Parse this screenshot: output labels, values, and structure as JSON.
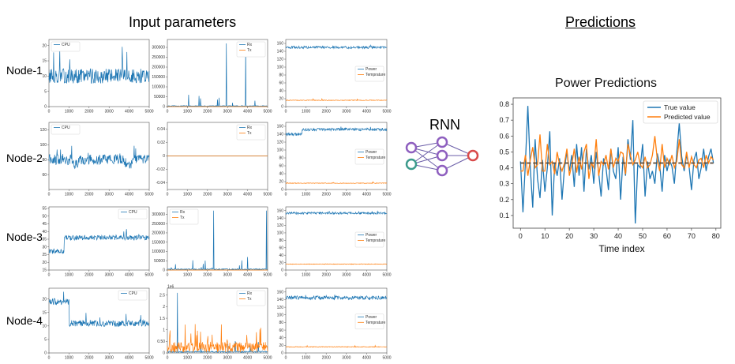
{
  "titles": {
    "input": "Input parameters",
    "predictions": "Predictions",
    "rnn": "RNN"
  },
  "nodes": [
    "Node-1",
    "Node-2",
    "Node-3",
    "Node-4"
  ],
  "colors": {
    "blue": "#1f77b4",
    "orange": "#ff7f0e",
    "dark": "#333333",
    "rnn_input": [
      "#8e5fbf",
      "#3d9a8c"
    ],
    "rnn_hidden": "#8e5fbf",
    "rnn_output": "#d94a4a"
  },
  "chart_data": [
    {
      "id": "n1-cpu",
      "type": "line",
      "series": [
        {
          "name": "CPU",
          "color": "#1f77b4",
          "base": 10,
          "noise": 2.4,
          "spikes": 0.05,
          "spikeMag": 10
        }
      ],
      "xlim": [
        0,
        5000
      ],
      "ylim": [
        0,
        22
      ],
      "yticks": [
        0,
        5,
        10,
        15,
        20
      ],
      "legend": "top-left"
    },
    {
      "id": "n1-net",
      "type": "line",
      "series": [
        {
          "name": "Rx",
          "color": "#1f77b4",
          "base": 3000,
          "noise": 2000,
          "spikes": 0.02,
          "spikeMag": 60000,
          "bigSpikes": [
            [
              2950,
              320000
            ],
            [
              3900,
              310000
            ],
            [
              1050,
              60000
            ]
          ]
        },
        {
          "name": "Tx",
          "color": "#ff7f0e",
          "base": 0,
          "noise": 0,
          "spikes": 0,
          "spikeMag": 0
        }
      ],
      "xlim": [
        0,
        5000
      ],
      "ylim": [
        0,
        340000
      ],
      "yticks": [
        0,
        50000,
        100000,
        150000,
        200000,
        250000,
        300000
      ],
      "legend": "top-right"
    },
    {
      "id": "n1-pow",
      "type": "line",
      "series": [
        {
          "name": "Power",
          "color": "#1f77b4",
          "base": 150,
          "noise": 3,
          "spikes": 0.03,
          "spikeMag": 6
        },
        {
          "name": "Temprature",
          "color": "#ff7f0e",
          "base": 16,
          "noise": 0.8,
          "spikes": 0.01,
          "spikeMag": 4
        }
      ],
      "xlim": [
        0,
        5000
      ],
      "ylim": [
        0,
        170
      ],
      "yticks": [
        0,
        20,
        40,
        60,
        80,
        100,
        120,
        140,
        160
      ],
      "legend": "center-right"
    },
    {
      "id": "n2-cpu",
      "type": "line",
      "series": [
        {
          "name": "CPU",
          "color": "#1f77b4",
          "base": 80,
          "noise": 7,
          "spikes": 0.03,
          "spikeMag": 20,
          "segments": [
            [
              1200,
              1450,
              75
            ],
            [
              3700,
              4200,
              75
            ]
          ]
        }
      ],
      "xlim": [
        0,
        5000
      ],
      "ylim": [
        40,
        130
      ],
      "yticks": [
        60,
        80,
        100,
        120
      ],
      "legend": "top-left"
    },
    {
      "id": "n2-net",
      "type": "line",
      "series": [
        {
          "name": "Rx",
          "color": "#1f77b4",
          "base": 0,
          "noise": 0,
          "spikes": 0,
          "spikeMag": 0
        },
        {
          "name": "Tx",
          "color": "#ff7f0e",
          "base": 0,
          "noise": 0,
          "spikes": 0,
          "spikeMag": 0
        }
      ],
      "xlim": [
        0,
        5000
      ],
      "ylim": [
        -0.05,
        0.05
      ],
      "yticks": [
        -0.04,
        -0.02,
        0.0,
        0.02,
        0.04
      ],
      "legend": "top-right"
    },
    {
      "id": "n2-pow",
      "type": "line",
      "series": [
        {
          "name": "Power",
          "color": "#1f77b4",
          "base": 152,
          "noise": 3.5,
          "spikes": 0.03,
          "spikeMag": 8,
          "segments": [
            [
              0,
              800,
              140
            ]
          ]
        },
        {
          "name": "Temprature",
          "color": "#ff7f0e",
          "base": 16,
          "noise": 0.8,
          "spikes": 0.01,
          "spikeMag": 4
        }
      ],
      "xlim": [
        0,
        5000
      ],
      "ylim": [
        0,
        170
      ],
      "yticks": [
        0,
        20,
        40,
        60,
        80,
        100,
        120,
        140,
        160
      ],
      "legend": "center-right"
    },
    {
      "id": "n3-cpu",
      "type": "line",
      "series": [
        {
          "name": "CPU",
          "color": "#1f77b4",
          "base": 36,
          "noise": 1.6,
          "spikes": 0.03,
          "spikeMag": 6,
          "segments": [
            [
              0,
              750,
              27
            ]
          ]
        }
      ],
      "xlim": [
        0,
        5000
      ],
      "ylim": [
        15,
        56
      ],
      "yticks": [
        15,
        20,
        25,
        30,
        35,
        40,
        45,
        50,
        55
      ],
      "legend": "top-right"
    },
    {
      "id": "n3-net",
      "type": "line",
      "series": [
        {
          "name": "Rx",
          "color": "#1f77b4",
          "base": 4000,
          "noise": 3000,
          "spikes": 0.02,
          "spikeMag": 50000,
          "bigSpikes": [
            [
              2300,
              320000
            ],
            [
              4950,
              320000
            ],
            [
              4000,
              70000
            ]
          ]
        },
        {
          "name": "Tx",
          "color": "#ff7f0e",
          "base": 0,
          "noise": 0,
          "spikes": 0,
          "spikeMag": 0
        }
      ],
      "xlim": [
        0,
        5000
      ],
      "ylim": [
        0,
        340000
      ],
      "yticks": [
        0,
        50000,
        100000,
        150000,
        200000,
        250000,
        300000
      ],
      "legend": "top-left"
    },
    {
      "id": "n3-pow",
      "type": "line",
      "series": [
        {
          "name": "Power",
          "color": "#1f77b4",
          "base": 153,
          "noise": 3,
          "spikes": 0.03,
          "spikeMag": 6
        },
        {
          "name": "Temprature",
          "color": "#ff7f0e",
          "base": 16,
          "noise": 0.8,
          "spikes": 0.01,
          "spikeMag": 4
        }
      ],
      "xlim": [
        0,
        5000
      ],
      "ylim": [
        0,
        170
      ],
      "yticks": [
        0,
        20,
        40,
        60,
        80,
        100,
        120,
        140,
        160
      ],
      "legend": "center-right"
    },
    {
      "id": "n4-cpu",
      "type": "line",
      "series": [
        {
          "name": "CPU",
          "color": "#1f77b4",
          "base": 11,
          "noise": 1.2,
          "spikes": 0.03,
          "spikeMag": 4,
          "segments": [
            [
              0,
              1000,
              19
            ]
          ]
        }
      ],
      "xlim": [
        0,
        5000
      ],
      "ylim": [
        0,
        24
      ],
      "yticks": [
        0,
        5,
        10,
        15,
        20
      ],
      "legend": "top-right"
    },
    {
      "id": "n4-net",
      "type": "line",
      "series": [
        {
          "name": "Rx",
          "color": "#1f77b4",
          "base": 0.05,
          "noise": 0.03,
          "spikes": 0.04,
          "spikeMag": 0.5,
          "bigSpikes": [
            [
              500,
              2600000.0
            ]
          ]
        },
        {
          "name": "Tx",
          "color": "#ff7f0e",
          "base": 0.25,
          "noise": 0.22,
          "spikes": 0.08,
          "spikeMag": 1.0
        }
      ],
      "xlim": [
        0,
        5000
      ],
      "ylim": [
        0,
        2.8
      ],
      "yticks": [
        0.0,
        0.5,
        1.0,
        1.5,
        2.0,
        2.5
      ],
      "yexp": "1e6",
      "legend": "top-right"
    },
    {
      "id": "n4-pow",
      "type": "line",
      "series": [
        {
          "name": "Power",
          "color": "#1f77b4",
          "base": 145,
          "noise": 5,
          "spikes": 0.03,
          "spikeMag": 8
        },
        {
          "name": "Temprature",
          "color": "#ff7f0e",
          "base": 16,
          "noise": 0.8,
          "spikes": 0.01,
          "spikeMag": 4
        }
      ],
      "xlim": [
        0,
        5000
      ],
      "ylim": [
        0,
        170
      ],
      "yticks": [
        0,
        20,
        40,
        60,
        80,
        100,
        120,
        140,
        160
      ],
      "legend": "center-right"
    },
    {
      "id": "power-pred",
      "type": "line",
      "title": "Power Predictions",
      "xlabel": "Time index",
      "ylabel": "",
      "xlim": [
        -3,
        82
      ],
      "ylim": [
        0.02,
        0.84
      ],
      "xticks": [
        0,
        10,
        20,
        30,
        40,
        50,
        60,
        70,
        80
      ],
      "yticks": [
        0.1,
        0.2,
        0.3,
        0.4,
        0.5,
        0.6,
        0.7,
        0.8
      ],
      "legend": "top-right",
      "x_count": 80,
      "series": [
        {
          "name": "True value",
          "color": "#1f77b4",
          "values": [
            0.44,
            0.12,
            0.43,
            0.79,
            0.4,
            0.15,
            0.58,
            0.33,
            0.21,
            0.45,
            0.25,
            0.4,
            0.63,
            0.1,
            0.43,
            0.35,
            0.46,
            0.2,
            0.4,
            0.5,
            0.38,
            0.48,
            0.28,
            0.55,
            0.35,
            0.53,
            0.25,
            0.52,
            0.39,
            0.48,
            0.3,
            0.5,
            0.37,
            0.22,
            0.46,
            0.4,
            0.26,
            0.52,
            0.38,
            0.33,
            0.53,
            0.2,
            0.47,
            0.35,
            0.58,
            0.45,
            0.7,
            0.05,
            0.42,
            0.4,
            0.55,
            0.22,
            0.44,
            0.33,
            0.38,
            0.3,
            0.49,
            0.42,
            0.25,
            0.48,
            0.38,
            0.45,
            0.41,
            0.3,
            0.5,
            0.68,
            0.47,
            0.38,
            0.48,
            0.41,
            0.26,
            0.45,
            0.5,
            0.33,
            0.4,
            0.52,
            0.38,
            0.47,
            0.52,
            0.43
          ]
        },
        {
          "name": "Predicted value",
          "color": "#ff7f0e",
          "values": [
            0.38,
            0.38,
            0.48,
            0.35,
            0.45,
            0.53,
            0.4,
            0.42,
            0.61,
            0.38,
            0.38,
            0.55,
            0.42,
            0.44,
            0.36,
            0.5,
            0.42,
            0.38,
            0.43,
            0.52,
            0.35,
            0.42,
            0.52,
            0.37,
            0.47,
            0.39,
            0.5,
            0.55,
            0.33,
            0.43,
            0.4,
            0.58,
            0.35,
            0.44,
            0.42,
            0.48,
            0.39,
            0.52,
            0.4,
            0.46,
            0.44,
            0.5,
            0.49,
            0.36,
            0.55,
            0.48,
            0.42,
            0.45,
            0.5,
            0.42,
            0.4,
            0.47,
            0.4,
            0.42,
            0.48,
            0.6,
            0.45,
            0.38,
            0.55,
            0.4,
            0.46,
            0.42,
            0.48,
            0.4,
            0.44,
            0.58,
            0.42,
            0.4,
            0.5,
            0.4,
            0.47,
            0.42,
            0.4,
            0.45,
            0.46,
            0.4,
            0.48,
            0.43,
            0.47,
            0.45
          ]
        },
        {
          "name": "",
          "color": "#5a4a3a",
          "dashed": true,
          "values_const": 0.43
        }
      ]
    }
  ]
}
